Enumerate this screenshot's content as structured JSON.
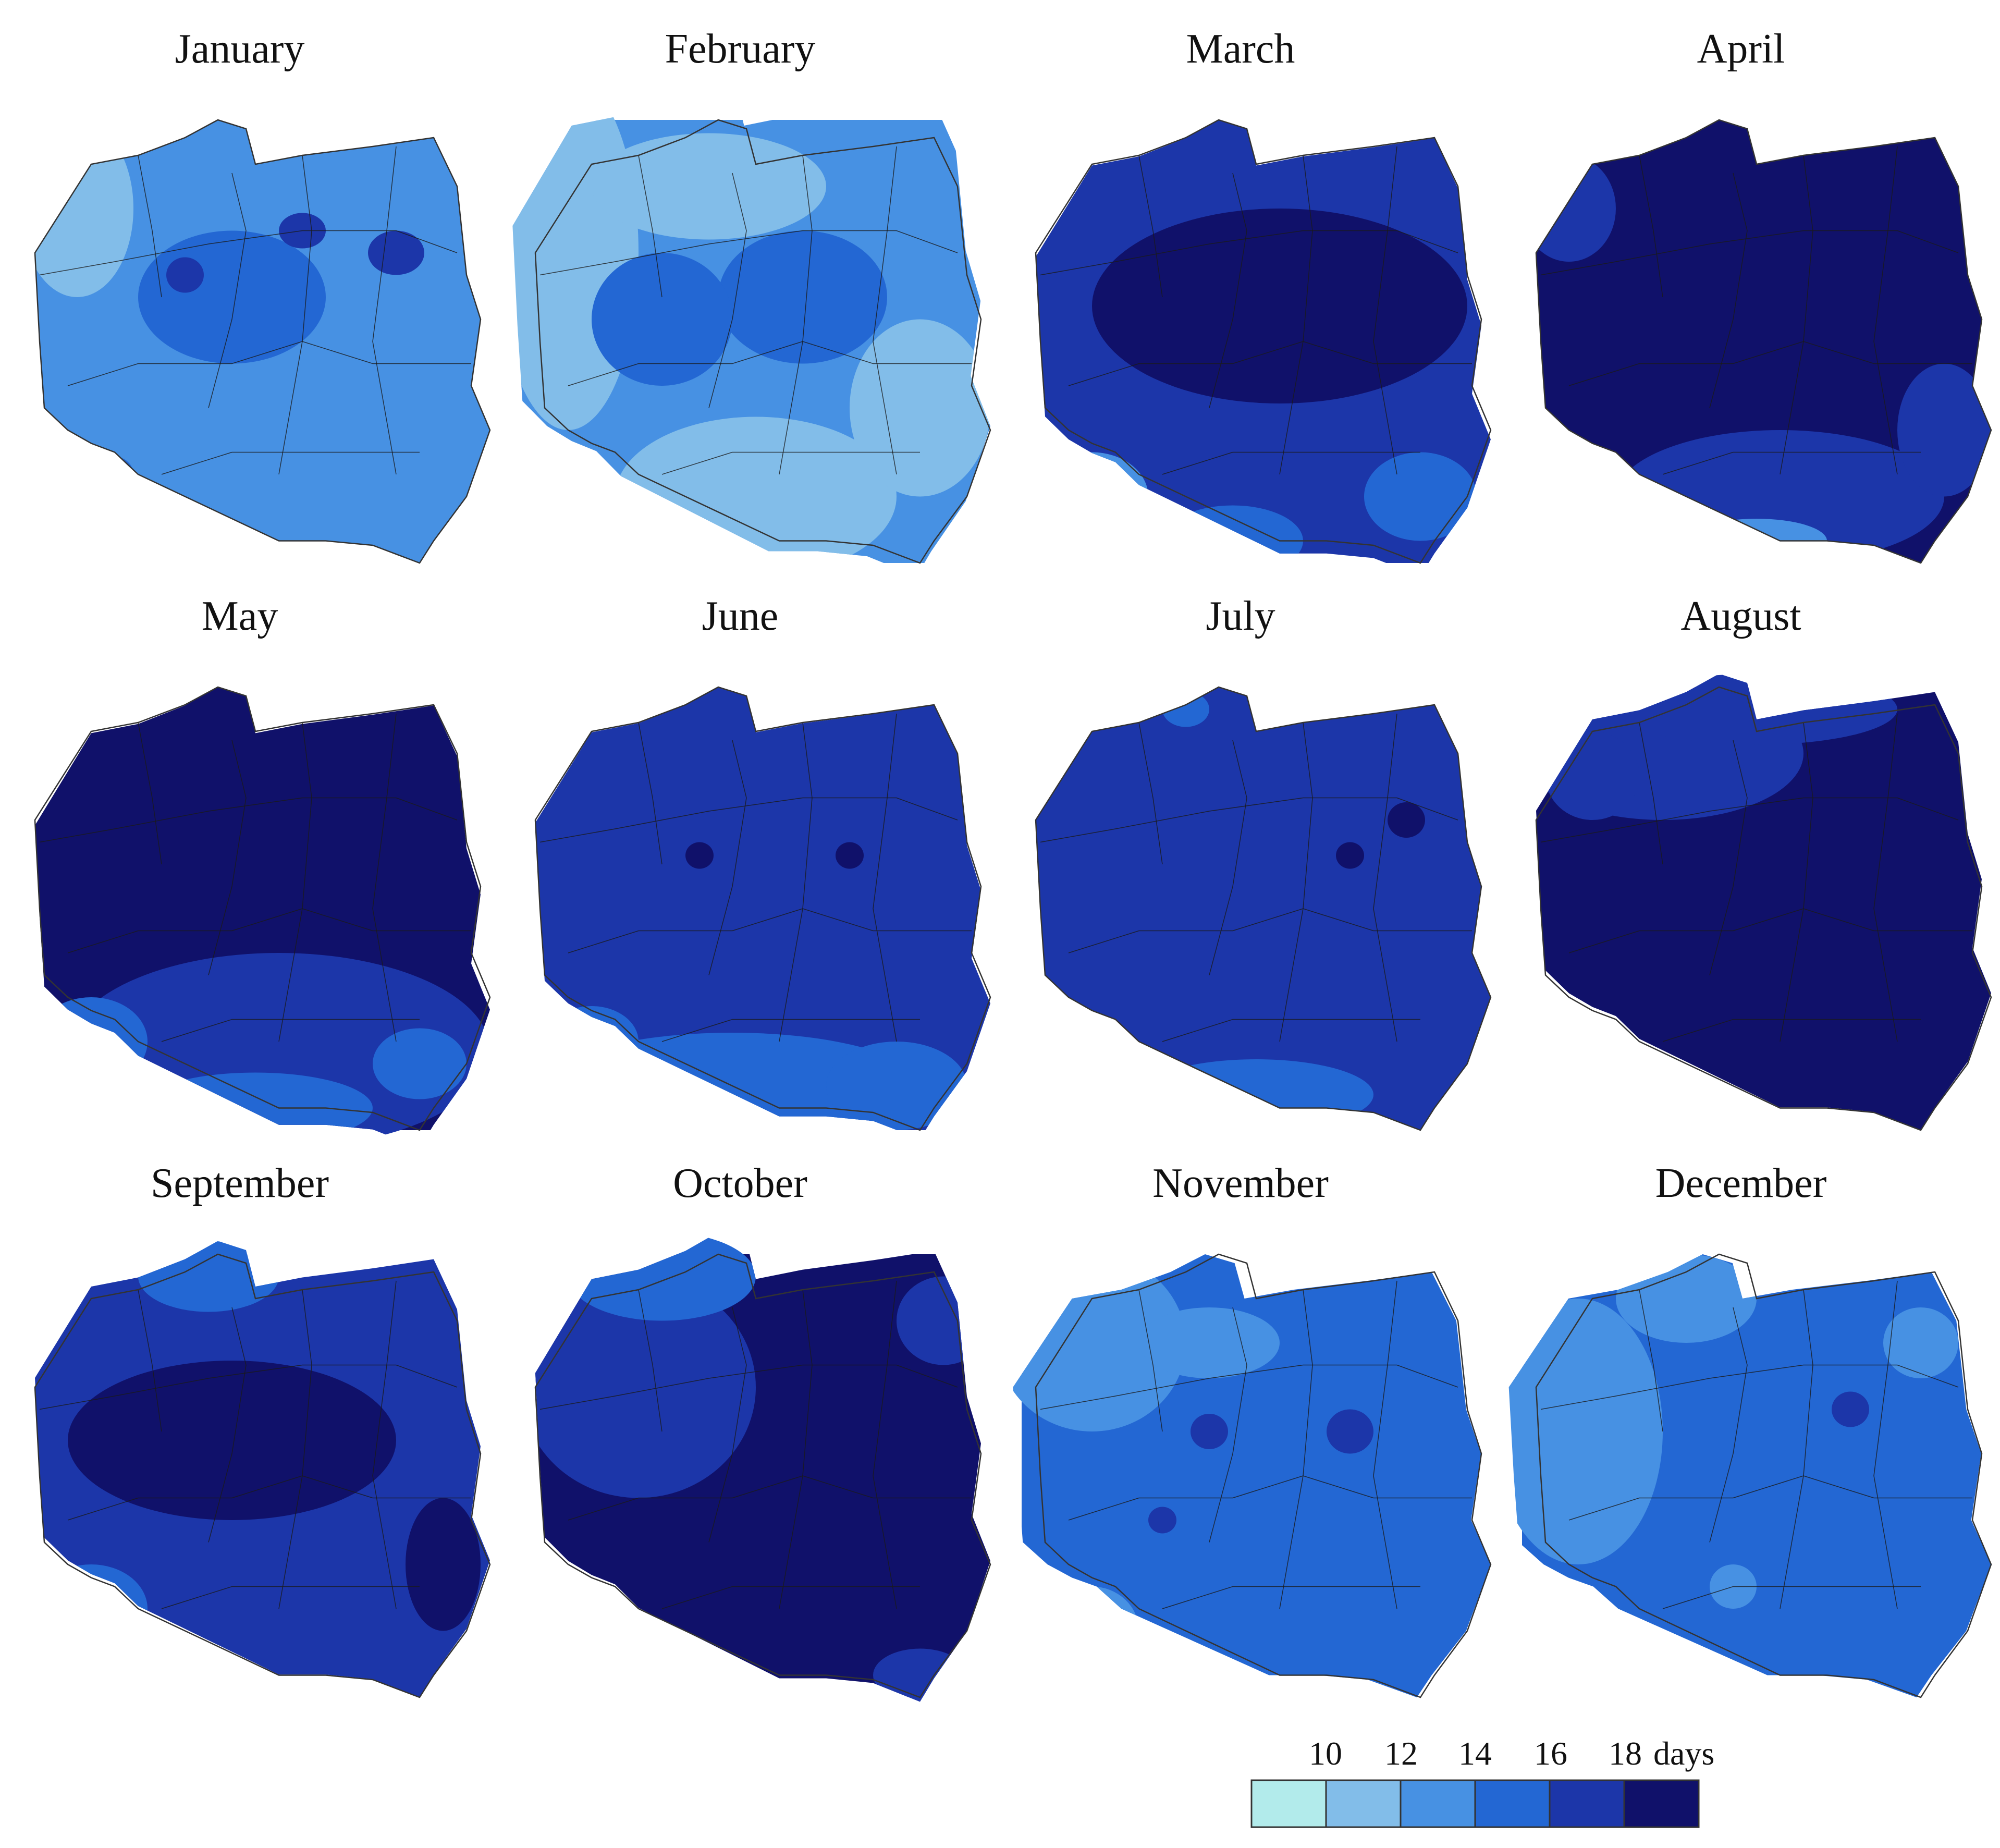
{
  "figure": {
    "months": [
      {
        "name": "January",
        "base": 2,
        "blobs": [
          [
            0.45,
            0.4,
            0.2,
            0.15,
            3
          ],
          [
            0.8,
            0.3,
            0.06,
            0.05,
            4
          ],
          [
            0.12,
            0.2,
            0.12,
            0.2,
            1
          ],
          [
            0.6,
            0.25,
            0.05,
            0.04,
            4
          ],
          [
            0.35,
            0.35,
            0.04,
            0.04,
            4
          ],
          [
            0.2,
            0.8,
            0.04,
            0.04,
            3
          ]
        ]
      },
      {
        "name": "February",
        "base": 2,
        "blobs": [
          [
            0.1,
            0.3,
            0.15,
            0.4,
            1
          ],
          [
            0.5,
            0.85,
            0.3,
            0.18,
            1
          ],
          [
            0.85,
            0.65,
            0.15,
            0.2,
            1
          ],
          [
            0.4,
            0.15,
            0.25,
            0.12,
            1
          ],
          [
            0.6,
            0.4,
            0.18,
            0.15,
            3
          ],
          [
            0.3,
            0.45,
            0.15,
            0.15,
            3
          ]
        ]
      },
      {
        "name": "March",
        "base": 4,
        "blobs": [
          [
            0.55,
            0.42,
            0.4,
            0.22,
            5
          ],
          [
            0.15,
            0.85,
            0.12,
            0.1,
            2
          ],
          [
            0.45,
            0.95,
            0.15,
            0.08,
            3
          ],
          [
            0.85,
            0.85,
            0.12,
            0.1,
            3
          ]
        ]
      },
      {
        "name": "April",
        "base": 5,
        "blobs": [
          [
            0.55,
            0.85,
            0.35,
            0.15,
            4
          ],
          [
            0.15,
            0.85,
            0.1,
            0.1,
            3
          ],
          [
            0.5,
            0.95,
            0.15,
            0.05,
            2
          ],
          [
            0.9,
            0.7,
            0.1,
            0.15,
            4
          ],
          [
            0.1,
            0.2,
            0.1,
            0.12,
            4
          ]
        ]
      },
      {
        "name": "May",
        "base": 5,
        "blobs": [
          [
            0.55,
            0.82,
            0.45,
            0.22,
            4
          ],
          [
            0.5,
            0.95,
            0.25,
            0.08,
            3
          ],
          [
            0.15,
            0.8,
            0.12,
            0.1,
            3
          ],
          [
            0.85,
            0.85,
            0.1,
            0.08,
            3
          ]
        ]
      },
      {
        "name": "June",
        "base": 4,
        "blobs": [
          [
            0.45,
            0.9,
            0.4,
            0.12,
            3
          ],
          [
            0.8,
            0.9,
            0.15,
            0.1,
            3
          ],
          [
            0.15,
            0.8,
            0.1,
            0.08,
            3
          ],
          [
            0.38,
            0.38,
            0.03,
            0.03,
            5
          ],
          [
            0.7,
            0.38,
            0.03,
            0.03,
            5
          ]
        ]
      },
      {
        "name": "July",
        "base": 4,
        "blobs": [
          [
            0.5,
            0.92,
            0.25,
            0.08,
            3
          ],
          [
            0.15,
            0.85,
            0.08,
            0.06,
            3
          ],
          [
            0.7,
            0.38,
            0.03,
            0.03,
            5
          ],
          [
            0.82,
            0.3,
            0.04,
            0.04,
            5
          ],
          [
            0.35,
            0.05,
            0.05,
            0.04,
            3
          ]
        ]
      },
      {
        "name": "August",
        "base": 5,
        "blobs": [
          [
            0.3,
            0.15,
            0.3,
            0.15,
            4
          ],
          [
            0.5,
            0.05,
            0.3,
            0.08,
            4
          ],
          [
            0.15,
            0.2,
            0.1,
            0.1,
            4
          ]
        ]
      },
      {
        "name": "September",
        "base": 4,
        "blobs": [
          [
            0.45,
            0.42,
            0.35,
            0.18,
            5
          ],
          [
            0.9,
            0.7,
            0.08,
            0.15,
            5
          ],
          [
            0.15,
            0.8,
            0.12,
            0.1,
            3
          ],
          [
            0.4,
            0.05,
            0.15,
            0.08,
            3
          ]
        ]
      },
      {
        "name": "October",
        "base": 5,
        "blobs": [
          [
            0.25,
            0.3,
            0.25,
            0.25,
            4
          ],
          [
            0.3,
            0.05,
            0.2,
            0.1,
            3
          ],
          [
            0.9,
            0.15,
            0.1,
            0.1,
            4
          ],
          [
            0.15,
            0.8,
            0.08,
            0.06,
            4
          ],
          [
            0.85,
            0.95,
            0.1,
            0.06,
            4
          ]
        ]
      },
      {
        "name": "November",
        "base": 3,
        "blobs": [
          [
            0.15,
            0.2,
            0.2,
            0.2,
            2
          ],
          [
            0.4,
            0.2,
            0.15,
            0.08,
            2
          ],
          [
            0.15,
            0.85,
            0.1,
            0.1,
            2
          ],
          [
            0.7,
            0.4,
            0.05,
            0.05,
            4
          ],
          [
            0.4,
            0.4,
            0.04,
            0.04,
            4
          ],
          [
            0.3,
            0.6,
            0.03,
            0.03,
            4
          ]
        ]
      },
      {
        "name": "December",
        "base": 3,
        "blobs": [
          [
            0.12,
            0.4,
            0.18,
            0.3,
            2
          ],
          [
            0.35,
            0.1,
            0.15,
            0.1,
            2
          ],
          [
            0.85,
            0.2,
            0.08,
            0.08,
            2
          ],
          [
            0.45,
            0.75,
            0.05,
            0.05,
            2
          ],
          [
            0.7,
            0.35,
            0.04,
            0.04,
            4
          ]
        ]
      }
    ]
  },
  "legend": {
    "ticks": [
      "10",
      "12",
      "14",
      "16",
      "18"
    ],
    "unit": "days",
    "colors": [
      "#b2ebeb",
      "#82bde9",
      "#4791e3",
      "#2367d3",
      "#1c36a9",
      "#10116a"
    ]
  },
  "colors": {
    "border": "#1a1a1a",
    "outline": "#333333"
  }
}
